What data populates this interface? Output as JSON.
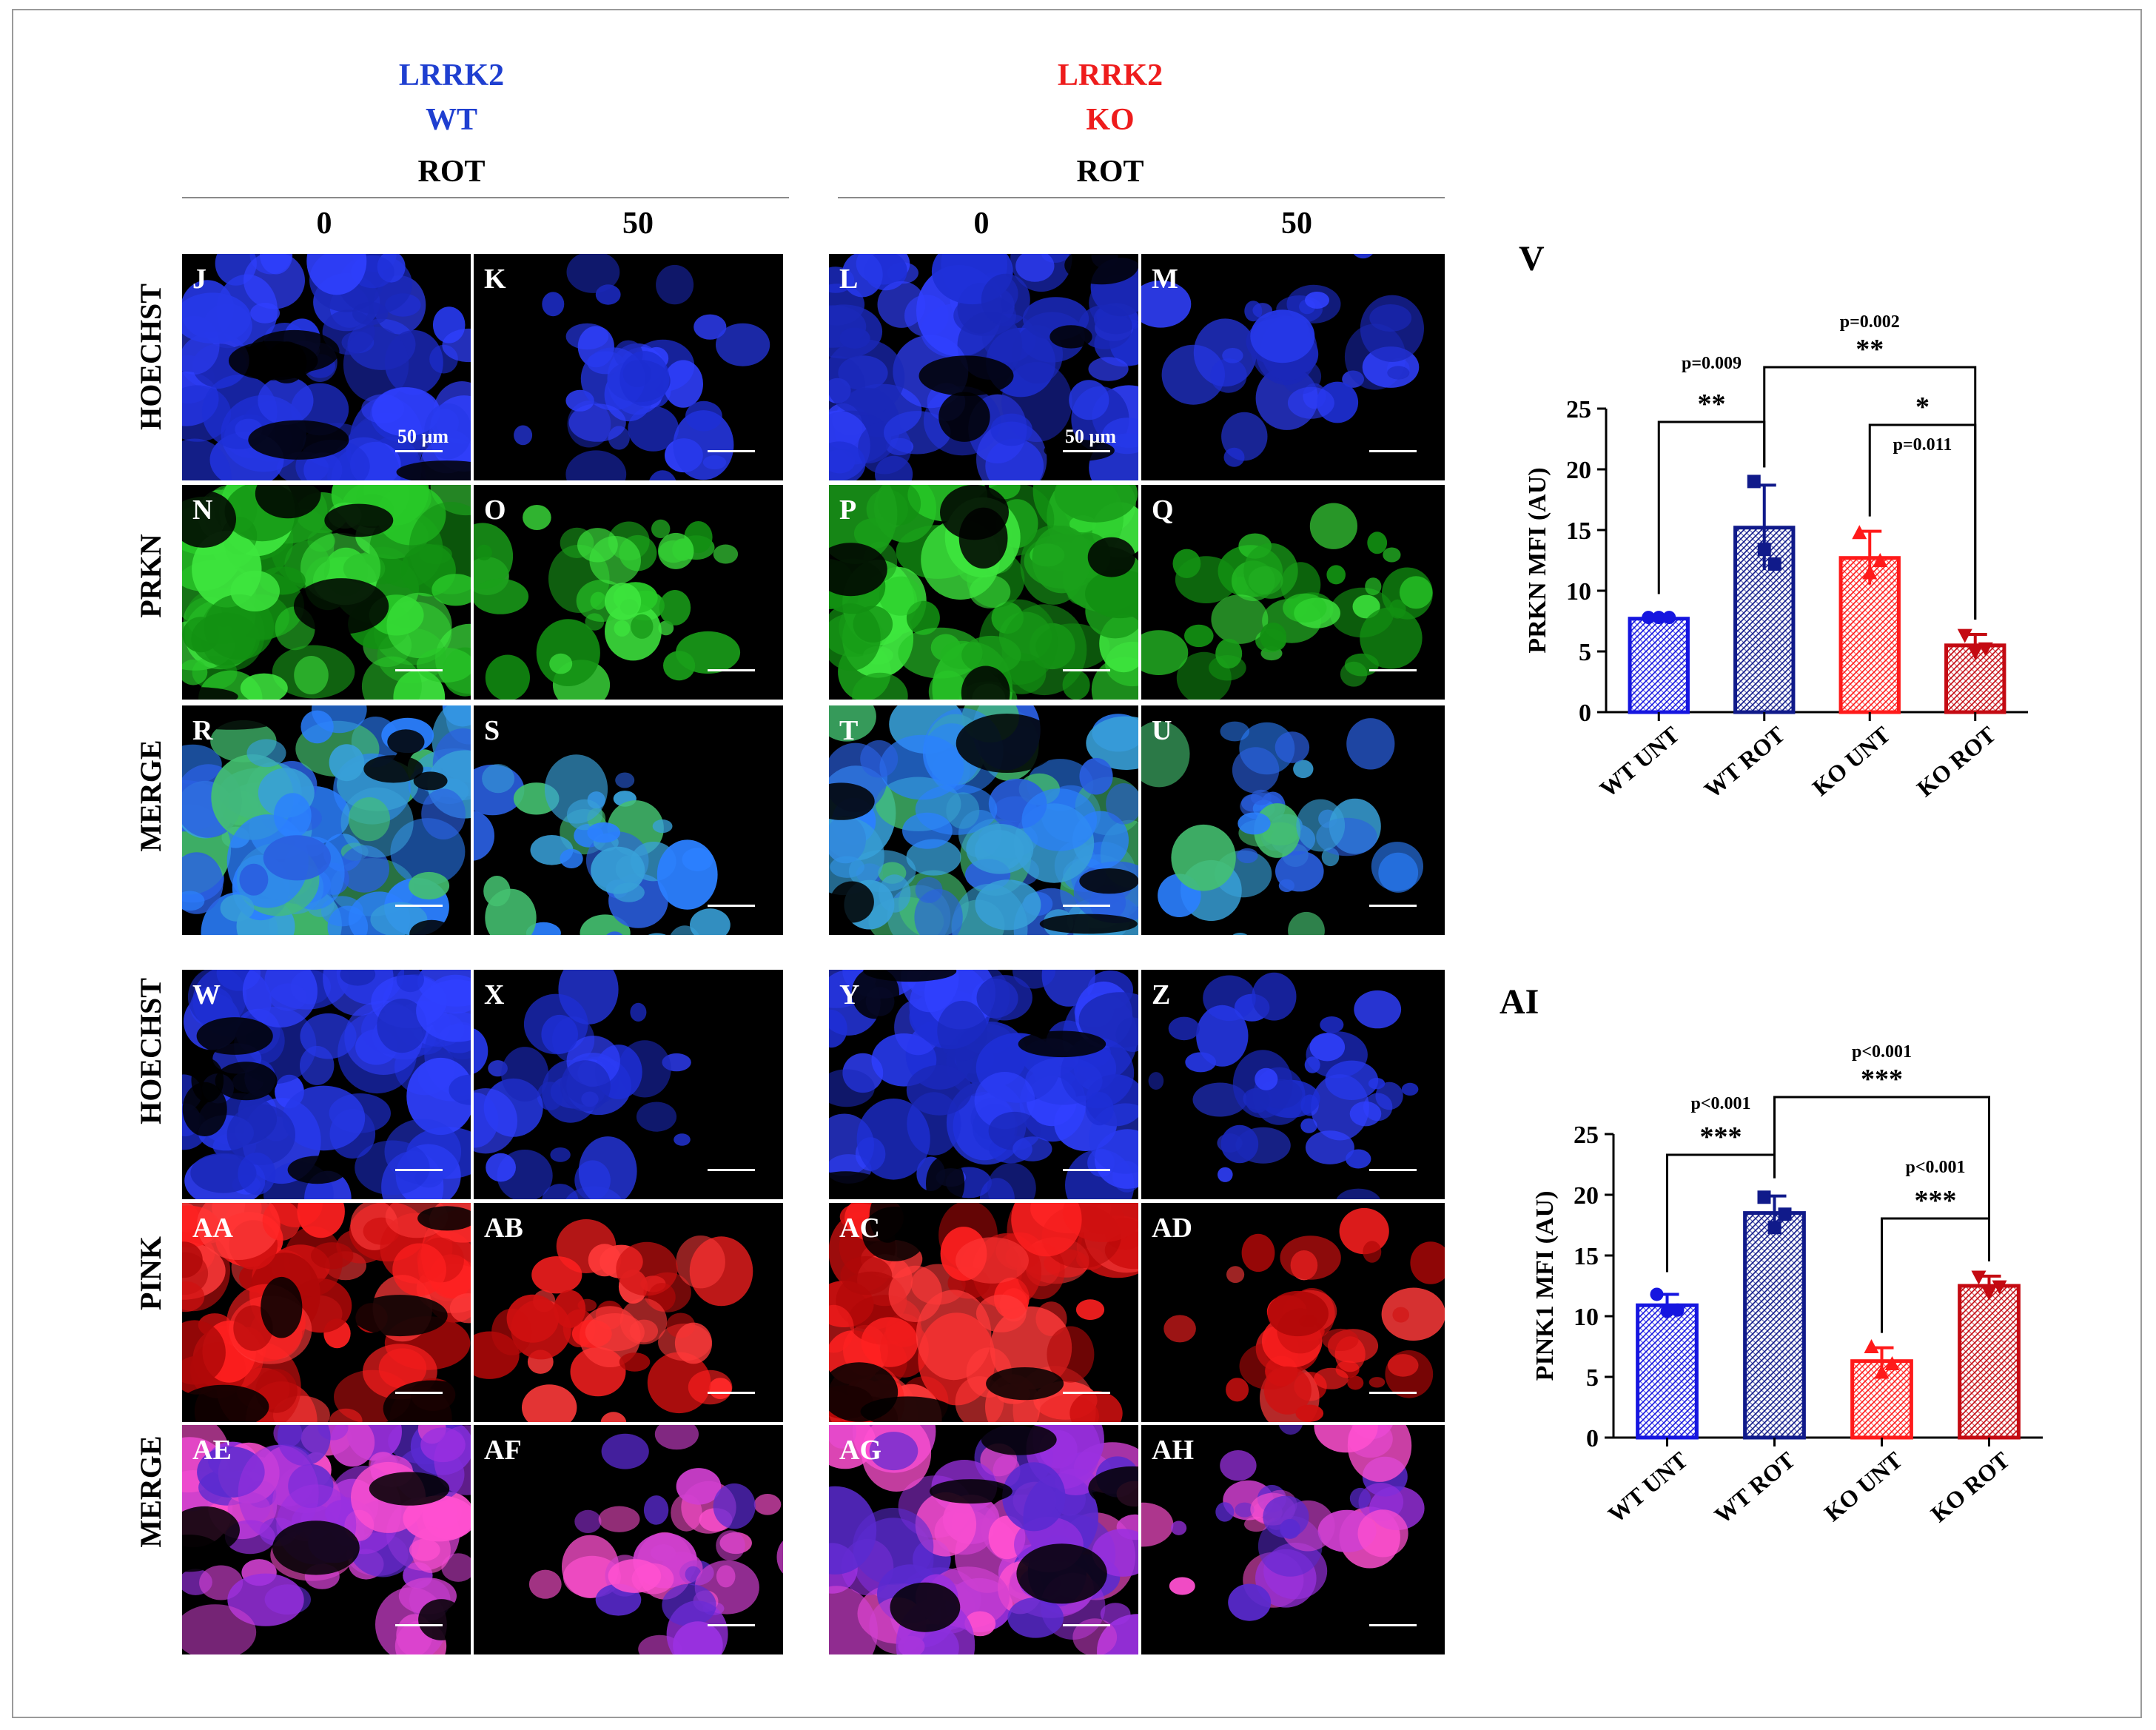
{
  "headers": {
    "wt_line1": "LRRK2",
    "wt_line2": "WT",
    "ko_line1": "LRRK2",
    "ko_line2": "KO",
    "rot_wt": "ROT",
    "rot_ko": "ROT",
    "conc_wt_0": "0",
    "conc_wt_50": "50",
    "conc_ko_0": "0",
    "conc_ko_50": "50",
    "wt_color": "#1f3fd0",
    "ko_color": "#ee1c1c"
  },
  "row_labels": [
    "HOECHST",
    "PRKN",
    "MERGE",
    "HOECHST",
    "PINK",
    "MERGE"
  ],
  "panels": [
    [
      "J",
      "K",
      "L",
      "M"
    ],
    [
      "N",
      "O",
      "P",
      "Q"
    ],
    [
      "R",
      "S",
      "T",
      "U"
    ],
    [
      "W",
      "X",
      "Y",
      "Z"
    ],
    [
      "AA",
      "AB",
      "AC",
      "AD"
    ],
    [
      "AE",
      "AF",
      "AG",
      "AH"
    ]
  ],
  "scale_bar_label": "50 µm",
  "chart_data": [
    {
      "panel_label": "V",
      "type": "bar",
      "categories": [
        "WT UNT",
        "WT ROT",
        "KO UNT",
        "KO ROT"
      ],
      "values": [
        7.7,
        15.2,
        12.7,
        5.5
      ],
      "errors": [
        0.2,
        3.5,
        2.2,
        0.9
      ],
      "points": [
        [
          7.8,
          7.8,
          7.8
        ],
        [
          19,
          13.4,
          12.2
        ],
        [
          14.8,
          11.5,
          12.5
        ],
        [
          6.3,
          4.9,
          5.2
        ]
      ],
      "bar_colors": [
        "#1616e0",
        "#101a8a",
        "#ff1a1a",
        "#c40a12"
      ],
      "ylabel": "PRKN MFI (AU)",
      "ylim": [
        0,
        25
      ],
      "yticks": [
        0,
        5,
        10,
        15,
        20,
        25
      ],
      "annotations": [
        {
          "from": 0,
          "to": 1,
          "p": "p=0.009",
          "stars": "**"
        },
        {
          "from": 1,
          "to": 3,
          "p": "p=0.002",
          "stars": "**"
        },
        {
          "from": 2,
          "to": 3,
          "p": "p=0.011",
          "stars": "*"
        }
      ]
    },
    {
      "panel_label": "AI",
      "type": "bar",
      "categories": [
        "WT UNT",
        "WT ROT",
        "KO UNT",
        "KO ROT"
      ],
      "values": [
        10.9,
        18.5,
        6.3,
        12.5
      ],
      "errors": [
        0.9,
        1.4,
        1.1,
        0.8
      ],
      "points": [
        [
          11.8,
          10.4,
          10.5
        ],
        [
          19.8,
          17.3,
          18.4
        ],
        [
          7.5,
          5.4,
          6.1
        ],
        [
          13.2,
          11.9,
          12.4
        ]
      ],
      "bar_colors": [
        "#1616e0",
        "#101a8a",
        "#ff1a1a",
        "#c40a12"
      ],
      "ylabel": "PINK1 MFI (AU)",
      "ylim": [
        0,
        25
      ],
      "yticks": [
        0,
        5,
        10,
        15,
        20,
        25
      ],
      "annotations": [
        {
          "from": 0,
          "to": 1,
          "p": "p<0.001",
          "stars": "***"
        },
        {
          "from": 1,
          "to": 3,
          "p": "p<0.001",
          "stars": "***"
        },
        {
          "from": 2,
          "to": 3,
          "p": "p<0.001",
          "stars": "***"
        }
      ]
    }
  ]
}
